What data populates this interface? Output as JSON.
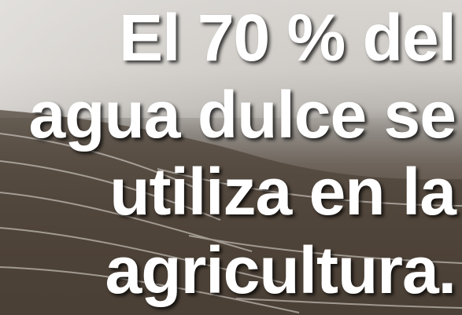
{
  "text_lines": [
    "El 70 % del",
    "agua dulce se",
    "utiliza en la",
    "agricultura."
  ]
}
